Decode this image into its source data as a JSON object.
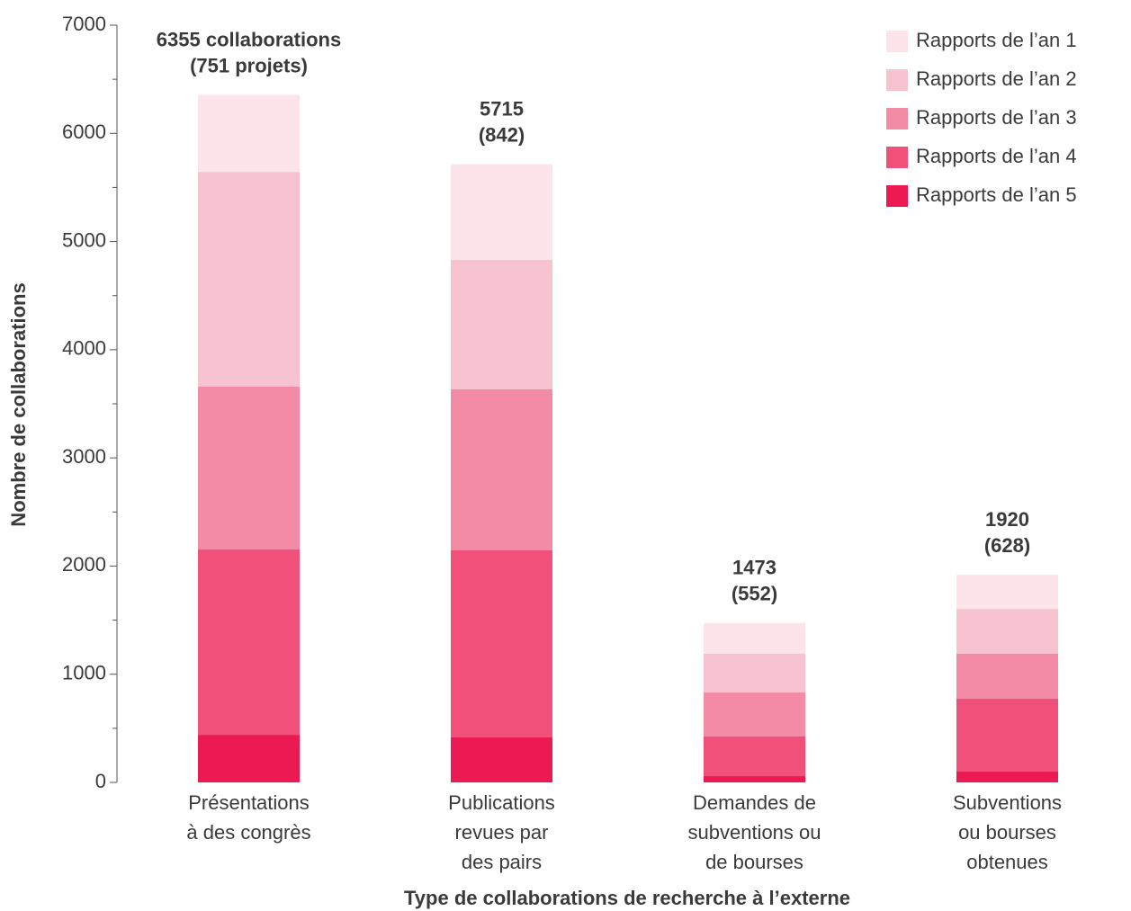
{
  "chart_data": {
    "type": "stacked_bar",
    "x_label": "Type de collaborations de recherche à l’externe",
    "y_label": "Nombre de collaborations",
    "categories": [
      [
        "Présentations",
        "à des congrès"
      ],
      [
        "Publications",
        "revues par",
        "des pairs"
      ],
      [
        "Demandes de",
        "subventions ou",
        "de bourses"
      ],
      [
        "Subventions",
        "ou bourses",
        "obtenues"
      ]
    ],
    "series": [
      {
        "name": "Rapports de l’an 5",
        "color": "#eb1a52",
        "values": [
          440,
          416,
          58,
          100
        ]
      },
      {
        "name": "Rapports de l’an 4",
        "color": "#f0507a",
        "values": [
          1713,
          1729,
          366,
          673
        ]
      },
      {
        "name": "Rapports de l’an 3",
        "color": "#f48ba6",
        "values": [
          1505,
          1488,
          407,
          416
        ]
      },
      {
        "name": "Rapports de l’an 2",
        "color": "#f8c3d0",
        "values": [
          1986,
          1197,
          358,
          415
        ]
      },
      {
        "name": "Rapports de l’an 1",
        "color": "#fde4ea",
        "values": [
          711,
          885,
          284,
          316
        ]
      }
    ],
    "annotations": [
      [
        "6355 collaborations",
        "(751 projets)"
      ],
      [
        "5715",
        "(842)"
      ],
      [
        "1473",
        "(552)"
      ],
      [
        "1920",
        "(628)"
      ]
    ],
    "ylim": [
      0,
      7000
    ],
    "yticks": [
      0,
      1000,
      2000,
      3000,
      4000,
      5000,
      6000,
      7000
    ],
    "yminorticks": [
      500,
      1500,
      2500,
      3500,
      4500,
      5500,
      6500
    ],
    "legend": "upper right",
    "grid": false
  }
}
